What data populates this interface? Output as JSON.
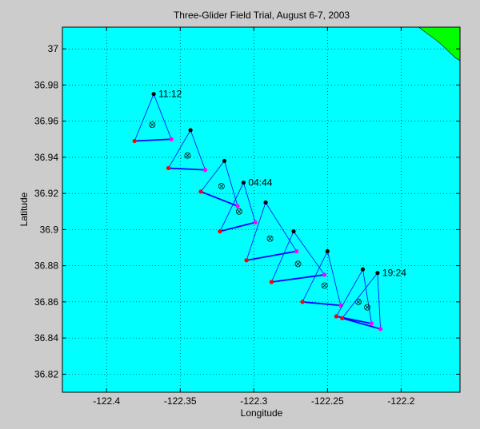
{
  "chart_data": {
    "type": "scatter",
    "title": "Three-Glider Field Trial, August 6-7, 2003",
    "xlabel": "Longitude",
    "ylabel": "Latitude",
    "xlim": [
      -122.43,
      -122.16
    ],
    "ylim": [
      36.81,
      37.012
    ],
    "xticks": [
      -122.4,
      -122.35,
      -122.3,
      -122.25,
      -122.2
    ],
    "xtick_labels": [
      "-122.4",
      "-122.35",
      "-122.3",
      "-122.25",
      "-122.2"
    ],
    "yticks": [
      36.82,
      36.84,
      36.86,
      36.88,
      36.9,
      36.92,
      36.94,
      36.96,
      36.98,
      37.0
    ],
    "ytick_labels": [
      "36.82",
      "36.84",
      "36.86",
      "36.88",
      "36.9",
      "36.92",
      "36.94",
      "36.96",
      "36.98",
      "37"
    ],
    "grid": true,
    "colors": {
      "background": "#00ffff",
      "land": "#00ff00",
      "triangle": "#0000ff",
      "glider_a": "#000000",
      "glider_b": "#ff0000",
      "glider_c": "#ff00ff",
      "centroid": "#000000"
    },
    "land": [
      {
        "lon": -122.188,
        "lat": 37.012
      },
      {
        "lon": -122.16,
        "lat": 37.012
      },
      {
        "lon": -122.16,
        "lat": 36.9935
      },
      {
        "lon": -122.163,
        "lat": 36.995
      },
      {
        "lon": -122.167,
        "lat": 36.998
      },
      {
        "lon": -122.172,
        "lat": 37.002
      },
      {
        "lon": -122.178,
        "lat": 37.006
      },
      {
        "lon": -122.184,
        "lat": 37.0095
      }
    ],
    "formations": [
      {
        "a": [
          -122.368,
          36.975
        ],
        "b": [
          -122.381,
          36.949
        ],
        "c": [
          -122.356,
          36.95
        ],
        "centroid": [
          -122.369,
          36.958
        ],
        "label": "11:12"
      },
      {
        "a": [
          -122.343,
          36.955
        ],
        "b": [
          -122.358,
          36.934
        ],
        "c": [
          -122.333,
          36.933
        ],
        "centroid": [
          -122.345,
          36.941
        ],
        "label": ""
      },
      {
        "a": [
          -122.32,
          36.938
        ],
        "b": [
          -122.336,
          36.921
        ],
        "c": [
          -122.311,
          36.913
        ],
        "centroid": [
          -122.322,
          36.924
        ],
        "label": ""
      },
      {
        "a": [
          -122.307,
          36.926
        ],
        "b": [
          -122.323,
          36.899
        ],
        "c": [
          -122.299,
          36.904
        ],
        "centroid": [
          -122.31,
          36.91
        ],
        "label": "04:44"
      },
      {
        "a": [
          -122.292,
          36.915
        ],
        "b": [
          -122.305,
          36.883
        ],
        "c": [
          -122.271,
          36.888
        ],
        "centroid": [
          -122.289,
          36.895
        ],
        "label": ""
      },
      {
        "a": [
          -122.273,
          36.899
        ],
        "b": [
          -122.288,
          36.871
        ],
        "c": [
          -122.252,
          36.875
        ],
        "centroid": [
          -122.27,
          36.881
        ],
        "label": ""
      },
      {
        "a": [
          -122.25,
          36.888
        ],
        "b": [
          -122.267,
          36.86
        ],
        "c": [
          -122.241,
          36.858
        ],
        "centroid": [
          -122.252,
          36.869
        ],
        "label": ""
      },
      {
        "a": [
          -122.226,
          36.878
        ],
        "b": [
          -122.244,
          36.852
        ],
        "c": [
          -122.22,
          36.848
        ],
        "centroid": [
          -122.229,
          36.86
        ],
        "label": ""
      },
      {
        "a": [
          -122.216,
          36.876
        ],
        "b": [
          -122.24,
          36.851
        ],
        "c": [
          -122.214,
          36.845
        ],
        "centroid": [
          -122.223,
          36.857
        ],
        "label": "19:24"
      }
    ]
  }
}
